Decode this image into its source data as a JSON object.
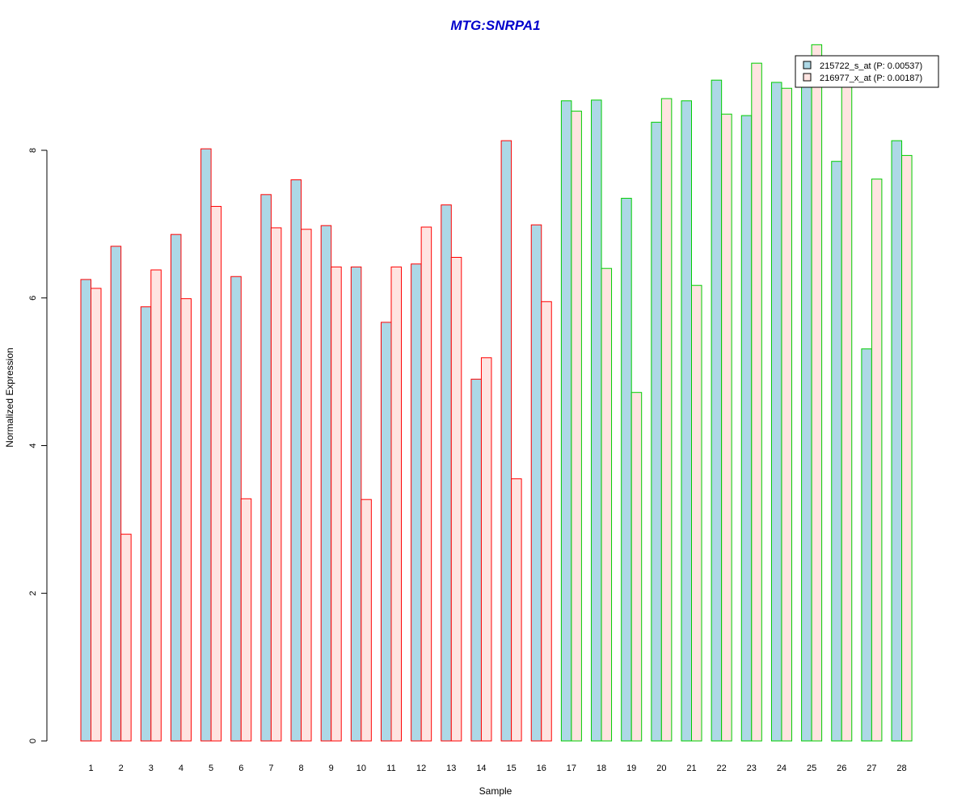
{
  "chart_data": {
    "type": "bar",
    "title": "MTG:SNRPA1",
    "xlabel": "Sample",
    "ylabel": "Normalized Expression",
    "ylim": [
      0,
      9.5
    ],
    "yticks": [
      "0",
      "2",
      "4",
      "6",
      "8"
    ],
    "categories": [
      "1",
      "2",
      "3",
      "4",
      "5",
      "6",
      "7",
      "8",
      "9",
      "10",
      "11",
      "12",
      "13",
      "14",
      "15",
      "16",
      "17",
      "18",
      "19",
      "20",
      "21",
      "22",
      "23",
      "24",
      "25",
      "26",
      "27",
      "28"
    ],
    "series": [
      {
        "name": "215722_s_at (P: 0.00537)",
        "fill": "#add8e6",
        "values": [
          6.25,
          6.7,
          5.88,
          6.86,
          8.02,
          6.29,
          7.4,
          7.6,
          6.98,
          6.42,
          5.67,
          6.46,
          7.26,
          4.9,
          8.13,
          6.99,
          8.67,
          8.68,
          7.35,
          8.38,
          8.67,
          8.95,
          8.47,
          8.92,
          8.93,
          7.85,
          5.31,
          8.13
        ]
      },
      {
        "name": "216977_x_at (P: 0.00187)",
        "fill": "#ffe4e1",
        "values": [
          6.13,
          2.8,
          6.38,
          5.99,
          7.24,
          3.28,
          6.95,
          6.93,
          6.42,
          3.27,
          6.42,
          6.96,
          6.55,
          5.19,
          3.55,
          5.95,
          8.53,
          6.4,
          4.72,
          8.7,
          6.17,
          8.49,
          9.18,
          8.84,
          9.43,
          8.9,
          7.61,
          7.93
        ]
      }
    ],
    "group_borders": {
      "group1": {
        "color": "#ff0000",
        "samples": [
          1,
          16
        ]
      },
      "group2": {
        "color": "#00cc00",
        "samples": [
          17,
          28
        ]
      }
    },
    "legend_position": "top-right"
  },
  "colors": {
    "title": "#0000cc",
    "series1_fill": "#add8e6",
    "series2_fill": "#ffe4e1",
    "group1_border": "#ff0000",
    "group2_border": "#00cc00"
  }
}
